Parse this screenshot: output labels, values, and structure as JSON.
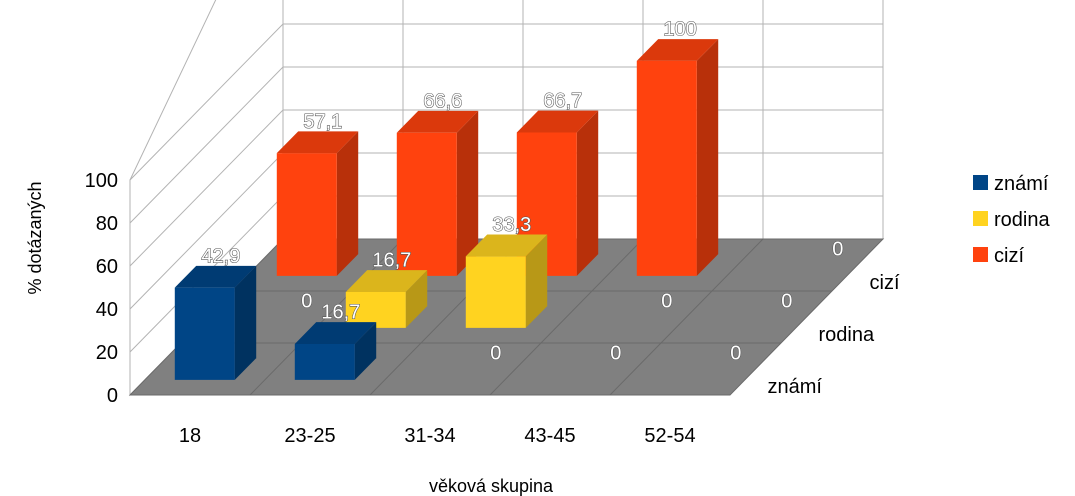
{
  "chart_data": {
    "type": "bar",
    "variant": "3d",
    "xlabel": "věková skupina",
    "ylabel": "% dotázaných",
    "categories": [
      "18",
      "23-25",
      "31-34",
      "43-45",
      "52-54"
    ],
    "series": [
      {
        "name": "známí",
        "values": [
          42.9,
          16.7,
          0,
          0,
          0
        ],
        "labels": [
          "42,9",
          "16,7",
          "0",
          "0",
          "0"
        ],
        "color": "#004586"
      },
      {
        "name": "rodina",
        "values": [
          0,
          16.7,
          33.3,
          0,
          0
        ],
        "labels": [
          "0",
          "16,7",
          "33,3",
          "0",
          "0"
        ],
        "color": "#ffd320"
      },
      {
        "name": "cizí",
        "values": [
          57.1,
          66.6,
          66.7,
          100,
          0
        ],
        "labels": [
          "57,1",
          "66,6",
          "66,7",
          "100",
          "0"
        ],
        "color": "#ff420e"
      }
    ],
    "yticks": [
      "0",
      "20",
      "40",
      "60",
      "80",
      "100"
    ],
    "ylim": [
      0,
      100
    ],
    "depth_labels": [
      "známí",
      "rodina",
      "cizí"
    ],
    "legend": {
      "position": "right",
      "entries": [
        "známí",
        "rodina",
        "cizí"
      ]
    },
    "grid": true,
    "floor_color": "#808080",
    "wall_color": "#ffffff"
  }
}
